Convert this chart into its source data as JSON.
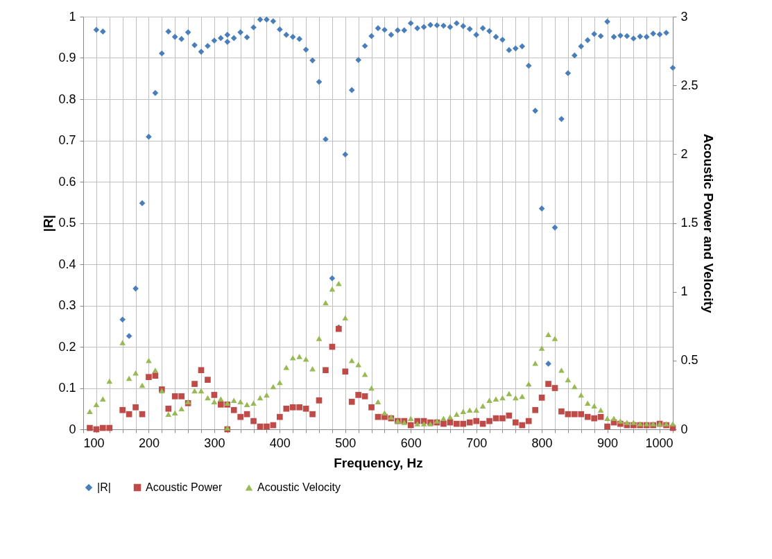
{
  "chart_data": {
    "type": "scatter",
    "xlabel": "Frequency, Hz",
    "ylabel": "|R|",
    "y2label": "Acoustic Power and Velocity",
    "xlim": [
      100,
      1000
    ],
    "ylim": [
      0,
      1
    ],
    "y2lim": [
      0,
      3
    ],
    "xticks": [
      100,
      {
        "value": 120,
        "label": null
      },
      {
        "value": 140,
        "label": null
      },
      {
        "value": 160,
        "label": null
      },
      {
        "value": 180,
        "label": null
      },
      200,
      {
        "value": 220,
        "label": null
      },
      {
        "value": 240,
        "label": null
      },
      {
        "value": 260,
        "label": null
      },
      {
        "value": 280,
        "label": null
      },
      300,
      {
        "value": 320,
        "label": null
      },
      {
        "value": 340,
        "label": null
      },
      {
        "value": 360,
        "label": null
      },
      {
        "value": 380,
        "label": null
      },
      400,
      {
        "value": 420,
        "label": null
      },
      {
        "value": 440,
        "label": null
      },
      {
        "value": 460,
        "label": null
      },
      {
        "value": 480,
        "label": null
      },
      500,
      {
        "value": 520,
        "label": null
      },
      {
        "value": 540,
        "label": null
      },
      {
        "value": 560,
        "label": null
      },
      {
        "value": 580,
        "label": null
      },
      600,
      {
        "value": 620,
        "label": null
      },
      {
        "value": 640,
        "label": null
      },
      {
        "value": 660,
        "label": null
      },
      {
        "value": 680,
        "label": null
      },
      700,
      {
        "value": 720,
        "label": null
      },
      {
        "value": 740,
        "label": null
      },
      {
        "value": 760,
        "label": null
      },
      {
        "value": 780,
        "label": null
      },
      800,
      {
        "value": 820,
        "label": null
      },
      {
        "value": 840,
        "label": null
      },
      {
        "value": 860,
        "label": null
      },
      {
        "value": 880,
        "label": null
      },
      900,
      {
        "value": 920,
        "label": null
      },
      {
        "value": 940,
        "label": null
      },
      {
        "value": 960,
        "label": null
      },
      {
        "value": 980,
        "label": null
      },
      1000
    ],
    "yticks": [
      0,
      0.1,
      0.2,
      0.3,
      0.4,
      0.5,
      0.6,
      0.7,
      0.8,
      0.9,
      1
    ],
    "y2ticks": [
      0,
      0.5,
      1,
      1.5,
      2,
      2.5,
      3
    ],
    "grid": true,
    "legend": "bottom",
    "series": [
      {
        "name": "|R|",
        "color": "#4a7ebb",
        "marker": "diamond",
        "x": [
          120,
          130,
          160,
          170,
          180,
          190,
          200,
          210,
          220,
          230,
          240,
          250,
          260,
          270,
          280,
          290,
          300,
          310,
          320,
          320,
          330,
          340,
          350,
          360,
          370,
          380,
          390,
          400,
          410,
          420,
          430,
          440,
          450,
          460,
          470,
          480,
          490,
          500,
          510,
          520,
          530,
          540,
          550,
          560,
          570,
          580,
          590,
          600,
          610,
          620,
          630,
          640,
          650,
          660,
          670,
          680,
          690,
          700,
          710,
          720,
          730,
          740,
          750,
          760,
          770,
          780,
          790,
          800,
          810,
          820,
          830,
          840,
          850,
          860,
          870,
          880,
          890,
          900,
          910,
          920,
          930,
          940,
          950,
          960,
          970,
          980,
          990,
          1000
        ],
        "values": [
          0.968,
          0.964,
          0.266,
          0.226,
          0.341,
          0.548,
          0.709,
          0.815,
          0.911,
          0.964,
          0.951,
          0.946,
          0.962,
          0.931,
          0.915,
          0.929,
          0.942,
          0.948,
          0.956,
          0.939,
          0.948,
          0.962,
          0.95,
          0.974,
          0.993,
          0.993,
          0.989,
          0.969,
          0.956,
          0.951,
          0.946,
          0.92,
          0.894,
          0.842,
          0.703,
          0.366,
          0.247,
          0.666,
          0.822,
          0.895,
          0.929,
          0.953,
          0.972,
          0.968,
          0.956,
          0.967,
          0.967,
          0.984,
          0.972,
          0.975,
          0.98,
          0.979,
          0.978,
          0.975,
          0.984,
          0.977,
          0.97,
          0.956,
          0.972,
          0.965,
          0.951,
          0.944,
          0.919,
          0.923,
          0.928,
          0.881,
          0.772,
          0.535,
          0.159,
          0.489,
          0.752,
          0.863,
          0.906,
          0.928,
          0.943,
          0.958,
          0.953,
          0.988,
          0.951,
          0.954,
          0.953,
          0.947,
          0.952,
          0.951,
          0.959,
          0.957,
          0.961,
          0.876
        ]
      },
      {
        "name": "Acoustic Power",
        "color": "#be4b48",
        "marker": "square",
        "axis": "y2",
        "x": [
          110,
          120,
          130,
          140,
          160,
          170,
          180,
          190,
          200,
          210,
          220,
          230,
          240,
          250,
          260,
          270,
          280,
          290,
          300,
          310,
          320,
          320,
          330,
          340,
          350,
          360,
          370,
          380,
          390,
          400,
          410,
          420,
          430,
          440,
          450,
          460,
          470,
          480,
          490,
          500,
          510,
          520,
          530,
          540,
          550,
          560,
          570,
          580,
          590,
          600,
          610,
          620,
          630,
          640,
          650,
          660,
          670,
          680,
          690,
          700,
          710,
          720,
          730,
          740,
          750,
          760,
          770,
          780,
          790,
          800,
          810,
          820,
          830,
          840,
          850,
          860,
          870,
          880,
          890,
          900,
          910,
          920,
          930,
          940,
          950,
          960,
          970,
          980,
          990,
          1000
        ],
        "values": [
          0.01,
          0.0,
          0.01,
          0.01,
          0.14,
          0.11,
          0.16,
          0.11,
          0.38,
          0.39,
          0.29,
          0.15,
          0.24,
          0.24,
          0.19,
          0.33,
          0.43,
          0.36,
          0.25,
          0.18,
          0.18,
          0.0,
          0.14,
          0.09,
          0.11,
          0.06,
          0.02,
          0.02,
          0.03,
          0.09,
          0.15,
          0.16,
          0.16,
          0.15,
          0.11,
          0.21,
          0.43,
          0.6,
          0.73,
          0.42,
          0.2,
          0.25,
          0.24,
          0.16,
          0.09,
          0.09,
          0.08,
          0.06,
          0.06,
          0.03,
          0.06,
          0.06,
          0.05,
          0.05,
          0.04,
          0.05,
          0.04,
          0.04,
          0.05,
          0.06,
          0.04,
          0.06,
          0.08,
          0.08,
          0.1,
          0.05,
          0.03,
          0.06,
          0.14,
          0.23,
          0.33,
          0.3,
          0.13,
          0.11,
          0.11,
          0.11,
          0.09,
          0.08,
          0.09,
          0.02,
          0.05,
          0.04,
          0.03,
          0.03,
          0.03,
          0.03,
          0.03,
          0.04,
          0.03,
          0.01
        ]
      },
      {
        "name": "Acoustic Velocity",
        "color": "#98b954",
        "marker": "triangle",
        "axis": "y2",
        "x": [
          110,
          120,
          130,
          140,
          160,
          170,
          180,
          190,
          200,
          210,
          220,
          230,
          240,
          250,
          260,
          270,
          280,
          290,
          300,
          310,
          320,
          320,
          330,
          340,
          350,
          360,
          370,
          380,
          390,
          400,
          410,
          420,
          430,
          440,
          450,
          460,
          470,
          480,
          490,
          500,
          510,
          520,
          530,
          540,
          550,
          560,
          570,
          580,
          590,
          600,
          610,
          620,
          630,
          640,
          650,
          660,
          670,
          680,
          690,
          700,
          710,
          720,
          730,
          740,
          750,
          760,
          770,
          780,
          790,
          800,
          810,
          820,
          830,
          840,
          850,
          860,
          870,
          880,
          890,
          900,
          910,
          920,
          930,
          940,
          950,
          960,
          970,
          980,
          990,
          1000
        ],
        "values": [
          0.13,
          0.18,
          0.22,
          0.35,
          0.63,
          0.37,
          0.41,
          0.32,
          0.5,
          0.43,
          0.28,
          0.11,
          0.12,
          0.15,
          0.2,
          0.28,
          0.28,
          0.23,
          0.2,
          0.22,
          0.19,
          0.01,
          0.21,
          0.2,
          0.18,
          0.19,
          0.23,
          0.25,
          0.31,
          0.34,
          0.45,
          0.52,
          0.53,
          0.51,
          0.44,
          0.66,
          0.92,
          1.02,
          1.06,
          0.81,
          0.5,
          0.47,
          0.4,
          0.3,
          0.2,
          0.12,
          0.09,
          0.06,
          0.05,
          0.08,
          0.04,
          0.04,
          0.04,
          0.06,
          0.08,
          0.09,
          0.11,
          0.13,
          0.14,
          0.14,
          0.17,
          0.21,
          0.22,
          0.23,
          0.26,
          0.23,
          0.24,
          0.33,
          0.48,
          0.59,
          0.69,
          0.66,
          0.43,
          0.36,
          0.31,
          0.25,
          0.19,
          0.17,
          0.14,
          0.08,
          0.08,
          0.06,
          0.05,
          0.05,
          0.04,
          0.04,
          0.04,
          0.04,
          0.04,
          0.04
        ]
      }
    ]
  }
}
